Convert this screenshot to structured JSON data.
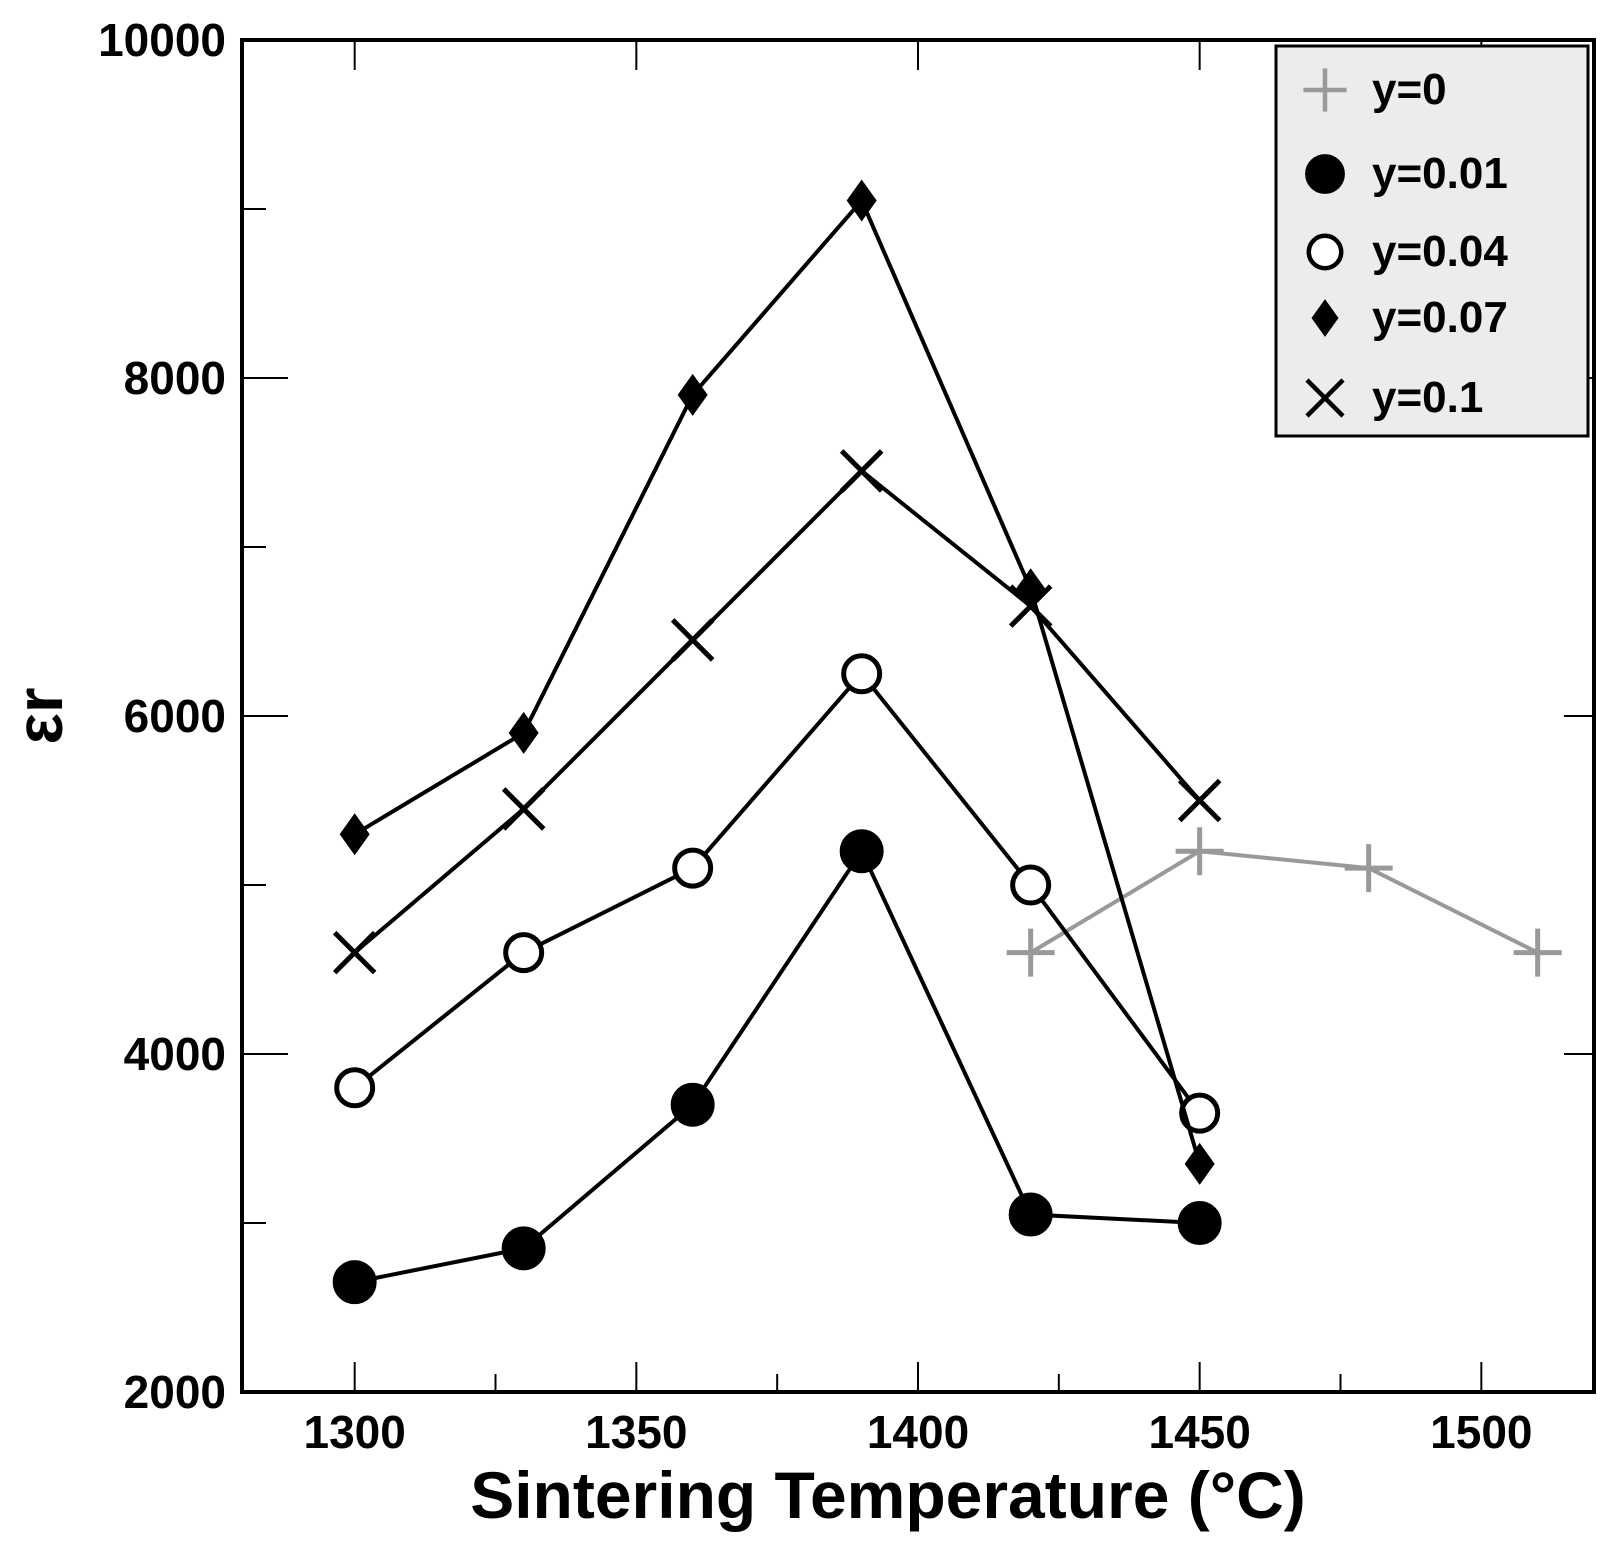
{
  "chart_data": {
    "type": "line",
    "title": "",
    "xlabel": "Sintering Temperature (°C)",
    "ylabel": "εr",
    "xlim": [
      1280,
      1520
    ],
    "ylim": [
      2000,
      10000
    ],
    "xticks_major": [
      1300,
      1350,
      1400,
      1450,
      1500
    ],
    "xticks_minor": [
      1325,
      1375,
      1425,
      1475
    ],
    "yticks_major": [
      2000,
      4000,
      6000,
      8000,
      10000
    ],
    "yticks_minor": [
      3000,
      5000,
      7000,
      9000
    ],
    "xtick_labels": [
      "1300",
      "1350",
      "1400",
      "1450",
      "1500"
    ],
    "ytick_labels": [
      "2000",
      "4000",
      "6000",
      "8000",
      "10000"
    ],
    "legend_position": "top-right",
    "series": [
      {
        "name": "y=0",
        "marker": "plus",
        "color": "#999999",
        "x": [
          1420,
          1450,
          1480,
          1510
        ],
        "y": [
          4600,
          5200,
          5100,
          4600
        ]
      },
      {
        "name": "y=0.01",
        "marker": "filled-circle",
        "color": "#000000",
        "x": [
          1300,
          1330,
          1360,
          1390,
          1420,
          1450
        ],
        "y": [
          2650,
          2850,
          3700,
          5200,
          3050,
          3000
        ]
      },
      {
        "name": "y=0.04",
        "marker": "open-circle",
        "color": "#000000",
        "x": [
          1300,
          1330,
          1360,
          1390,
          1420,
          1450
        ],
        "y": [
          3800,
          4600,
          5100,
          6250,
          5000,
          3650
        ]
      },
      {
        "name": "y=0.07",
        "marker": "diamond",
        "color": "#000000",
        "x": [
          1300,
          1330,
          1360,
          1390,
          1420,
          1450
        ],
        "y": [
          5300,
          5900,
          7900,
          9050,
          6750,
          3350
        ]
      },
      {
        "name": "y=0.1",
        "marker": "x",
        "color": "#000000",
        "x": [
          1300,
          1330,
          1360,
          1390,
          1420,
          1450
        ],
        "y": [
          4600,
          5450,
          6450,
          7450,
          6650,
          5500
        ]
      }
    ],
    "legend_background": "#ececec"
  }
}
